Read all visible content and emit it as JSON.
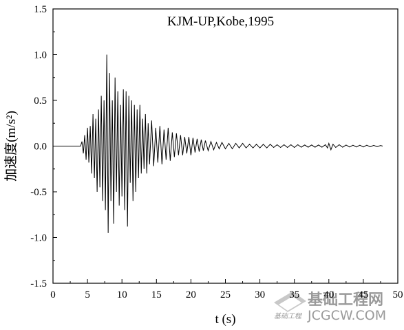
{
  "chart_data": {
    "type": "line",
    "title": "KJM-UP,Kobe,1995",
    "xlabel": "t (s)",
    "ylabel": "加速度(m/s²)",
    "xlim": [
      0,
      50
    ],
    "ylim": [
      -1.5,
      1.5
    ],
    "x_ticks": [
      0,
      5,
      10,
      15,
      20,
      25,
      30,
      35,
      40,
      45,
      50
    ],
    "y_ticks": [
      -1.5,
      -1.0,
      -0.5,
      0.0,
      0.5,
      1.0,
      1.5
    ],
    "x_tick_labels": [
      "0",
      "5",
      "10",
      "15",
      "20",
      "25",
      "30",
      "35",
      "40",
      "45",
      "50"
    ],
    "y_tick_labels": [
      "-1.5",
      "-1.0",
      "-0.5",
      "0.0",
      "0.5",
      "1.0",
      "1.5"
    ],
    "grid": false,
    "line_color": "#000000",
    "series": [
      {
        "x": [
          0,
          4.0,
          4.2,
          4.4,
          4.6,
          4.8,
          5.0,
          5.2,
          5.4,
          5.6,
          5.8,
          6.0,
          6.2,
          6.4,
          6.6,
          6.8,
          7.0,
          7.2,
          7.4,
          7.6,
          7.8,
          8.0,
          8.2,
          8.4,
          8.6,
          8.8,
          9.0,
          9.2,
          9.4,
          9.6,
          9.8,
          10.0,
          10.2,
          10.4,
          10.6,
          10.8,
          11.0,
          11.2,
          11.4,
          11.6,
          11.8,
          12.0,
          12.2,
          12.4,
          12.6,
          12.8,
          13.0,
          13.2,
          13.4,
          13.6,
          13.8,
          14.0,
          14.3,
          14.6,
          14.9,
          15.2,
          15.5,
          15.8,
          16.1,
          16.4,
          16.7,
          17.0,
          17.3,
          17.6,
          17.9,
          18.2,
          18.5,
          18.8,
          19.1,
          19.4,
          19.7,
          20.0,
          20.3,
          20.6,
          20.9,
          21.2,
          21.5,
          21.8,
          22.1,
          22.5,
          22.9,
          23.3,
          23.7,
          24.1,
          24.5,
          25.0,
          25.5,
          26.0,
          26.5,
          27.0,
          27.5,
          28.0,
          28.5,
          29.0,
          29.5,
          30.0,
          30.5,
          31.0,
          31.5,
          32.0,
          32.5,
          33.0,
          33.5,
          34.0,
          34.5,
          35.0,
          35.5,
          36.0,
          36.5,
          37.0,
          37.5,
          38.0,
          38.5,
          39.0,
          39.5,
          39.8,
          40.0,
          40.3,
          40.6,
          41.0,
          41.5,
          42.0,
          42.5,
          43.0,
          43.5,
          44.0,
          44.5,
          45.0,
          45.5,
          46.0,
          46.5,
          47.0,
          47.5,
          47.8
        ],
        "y": [
          0.0,
          0.0,
          0.05,
          -0.08,
          0.12,
          -0.15,
          0.2,
          -0.18,
          0.22,
          -0.3,
          0.35,
          -0.35,
          0.3,
          -0.5,
          0.4,
          -0.45,
          0.55,
          -0.6,
          0.5,
          -0.7,
          1.0,
          -0.95,
          0.8,
          -0.6,
          0.5,
          -0.85,
          0.75,
          -0.5,
          0.6,
          -0.65,
          0.45,
          -0.55,
          0.62,
          -0.7,
          0.6,
          -0.88,
          0.55,
          -0.4,
          0.5,
          -0.6,
          0.45,
          -0.5,
          0.4,
          -0.35,
          0.45,
          -0.3,
          0.3,
          -0.25,
          0.35,
          -0.3,
          0.25,
          -0.2,
          0.28,
          -0.22,
          0.2,
          -0.18,
          0.22,
          -0.2,
          0.18,
          -0.15,
          0.2,
          -0.16,
          0.15,
          -0.12,
          0.14,
          -0.1,
          0.12,
          -0.1,
          0.1,
          -0.08,
          0.1,
          -0.1,
          0.09,
          -0.07,
          0.08,
          -0.06,
          0.07,
          -0.05,
          0.06,
          -0.05,
          0.05,
          -0.04,
          0.04,
          -0.03,
          0.04,
          -0.03,
          0.03,
          -0.03,
          0.03,
          -0.02,
          0.03,
          -0.02,
          0.02,
          -0.02,
          0.02,
          -0.02,
          0.02,
          -0.02,
          0.02,
          -0.015,
          0.015,
          -0.015,
          0.015,
          -0.015,
          0.015,
          -0.015,
          0.015,
          -0.012,
          0.012,
          -0.012,
          0.012,
          -0.012,
          0.012,
          -0.012,
          0.015,
          -0.02,
          0.03,
          -0.04,
          0.02,
          -0.015,
          0.015,
          -0.012,
          0.012,
          -0.01,
          0.01,
          -0.01,
          0.01,
          -0.01,
          0.01,
          -0.008,
          0.008,
          -0.006,
          0.006,
          0.0
        ]
      }
    ]
  },
  "watermark": {
    "cn_text": "基础工程网",
    "en_text": "JCGCW.COM",
    "small_text": "基础工程"
  }
}
